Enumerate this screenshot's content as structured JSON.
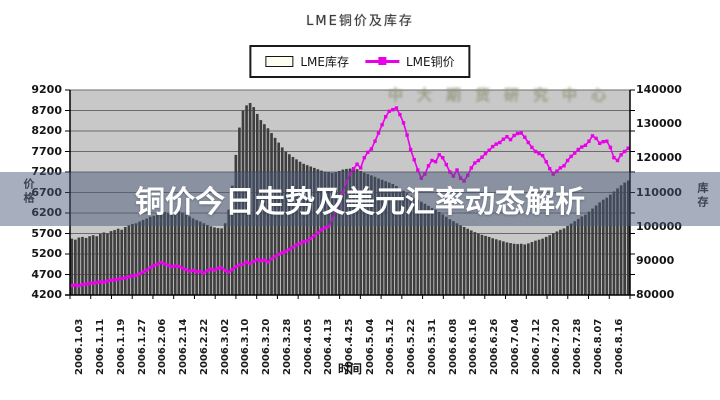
{
  "banner": {
    "headline": "铜价今日走势及美元汇率动态解析",
    "background": "rgba(72,86,118,0.48)"
  },
  "watermark": {
    "text": "中大期货研究中心"
  },
  "chart_data": {
    "type": "bar+line combo",
    "title": "LME铜价及库存",
    "xlabel": "时间",
    "ylabel_left": "价格",
    "ylabel_right": "库存",
    "ylim_left": [
      4200,
      9200
    ],
    "ytick_step_left": 500,
    "ylim_right": [
      80000,
      140000
    ],
    "ytick_step_right": 10000,
    "grid": true,
    "legend_position": "top",
    "colors": {
      "plot_bg": "#c8c8c8",
      "grid": "#6b6b6b",
      "bar": "#3e3e3e",
      "line": "#e800e8",
      "axis": "#000000"
    },
    "y_left_ticks": [
      "9200",
      "8700",
      "8200",
      "7700",
      "7200",
      "6700",
      "6200",
      "5700",
      "5200",
      "4700",
      "4200"
    ],
    "y_right_ticks": [
      "140000",
      "130000",
      "120000",
      "110000",
      "100000",
      "90000",
      "80000"
    ],
    "x_tick_labels": [
      "2006.1.03",
      "2006.1.11",
      "2006.1.19",
      "2006.1.27",
      "2006.2.06",
      "2006.2.14",
      "2006.2.22",
      "2006.3.02",
      "2006.3.10",
      "2006.3.20",
      "2006.3.28",
      "2006.4.05",
      "2006.4.13",
      "2006.4.25",
      "2006.5.04",
      "2006.5.12",
      "2006.5.22",
      "2006.5.31",
      "2006.6.08",
      "2006.6.16",
      "2006.6.26",
      "2006.7.04",
      "2006.7.12",
      "2006.7.20",
      "2006.7.28",
      "2006.8.07",
      "2006.8.16"
    ],
    "legend": [
      {
        "label": "LME库存",
        "swatch": "bar"
      },
      {
        "label": "LME铜价",
        "swatch": "line-square-marker"
      }
    ],
    "series": [
      {
        "name": "LME库存",
        "type": "bar",
        "axis": "right",
        "color": "#3e3e3e",
        "values": [
          96500,
          96200,
          96800,
          97000,
          96700,
          97200,
          97500,
          97200,
          97900,
          98300,
          98000,
          98700,
          99000,
          99400,
          99100,
          99900,
          100400,
          100800,
          101000,
          101500,
          102000,
          102400,
          102900,
          103200,
          103500,
          103900,
          104300,
          104000,
          104600,
          104400,
          104500,
          104100,
          103600,
          103000,
          102400,
          101900,
          101500,
          101000,
          100500,
          100100,
          99800,
          99600,
          99500,
          101000,
          105000,
          112000,
          121000,
          129000,
          134000,
          135500,
          136200,
          135000,
          133000,
          131200,
          130000,
          128800,
          127400,
          126000,
          124600,
          123200,
          122000,
          121200,
          120400,
          119700,
          119000,
          118400,
          118000,
          117600,
          117200,
          116800,
          116400,
          116100,
          116000,
          115700,
          115900,
          116300,
          116700,
          116900,
          117000,
          117300,
          116800,
          116300,
          115800,
          115400,
          115000,
          114600,
          114100,
          113700,
          113300,
          112900,
          112500,
          111900,
          111200,
          110500,
          109800,
          109100,
          108500,
          107900,
          107300,
          106700,
          106100,
          105500,
          105000,
          104300,
          103600,
          102900,
          102200,
          101600,
          101000,
          100400,
          99900,
          99400,
          98900,
          98400,
          98000,
          97600,
          97300,
          97000,
          96600,
          96300,
          96000,
          95700,
          95400,
          95200,
          95000,
          94900,
          95000,
          94800,
          95100,
          95500,
          95900,
          96200,
          96500,
          97000,
          97500,
          98100,
          98600,
          99100,
          99500,
          100200,
          100900,
          101600,
          102300,
          103000,
          103500,
          104400,
          105300,
          106200,
          107100,
          107900,
          108500,
          109400,
          110300,
          111200,
          112100,
          112900,
          113500
        ]
      },
      {
        "name": "LME铜价",
        "type": "line",
        "axis": "left",
        "color": "#e800e8",
        "values": [
          4430,
          4445,
          4425,
          4455,
          4470,
          4485,
          4490,
          4505,
          4520,
          4510,
          4540,
          4560,
          4570,
          4585,
          4600,
          4620,
          4645,
          4665,
          4680,
          4720,
          4760,
          4810,
          4870,
          4920,
          4950,
          4990,
          4960,
          4930,
          4890,
          4905,
          4900,
          4860,
          4820,
          4780,
          4800,
          4770,
          4770,
          4740,
          4790,
          4830,
          4805,
          4850,
          4860,
          4800,
          4760,
          4820,
          4890,
          4930,
          4950,
          5000,
          4970,
          5020,
          5060,
          5040,
          5050,
          5010,
          5080,
          5140,
          5190,
          5230,
          5260,
          5310,
          5370,
          5420,
          5460,
          5500,
          5520,
          5580,
          5650,
          5720,
          5790,
          5840,
          5880,
          6050,
          6250,
          6450,
          6700,
          6950,
          7150,
          7280,
          7390,
          7300,
          7550,
          7680,
          7760,
          7950,
          8150,
          8350,
          8550,
          8680,
          8720,
          8760,
          8600,
          8400,
          8100,
          7750,
          7500,
          7250,
          7050,
          7150,
          7350,
          7480,
          7450,
          7620,
          7550,
          7380,
          7200,
          7100,
          7250,
          7050,
          6980,
          7120,
          7300,
          7420,
          7480,
          7560,
          7650,
          7730,
          7820,
          7880,
          7920,
          8000,
          8060,
          7990,
          8090,
          8140,
          8150,
          8050,
          7920,
          7800,
          7700,
          7650,
          7600,
          7450,
          7280,
          7150,
          7220,
          7300,
          7350,
          7480,
          7580,
          7660,
          7750,
          7810,
          7850,
          7950,
          8080,
          8020,
          7900,
          7940,
          7950,
          7800,
          7550,
          7480,
          7620,
          7700,
          7780
        ]
      }
    ]
  }
}
